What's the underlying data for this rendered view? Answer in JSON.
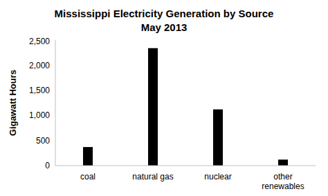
{
  "chart_data": {
    "type": "bar",
    "title": "Mississippi Electricity Generation by Source",
    "subtitle": "May 2013",
    "y_label": "Gigawatt Hours",
    "categories": [
      "coal",
      "natural gas",
      "nuclear",
      "other renewables"
    ],
    "values": [
      370,
      2340,
      1120,
      120
    ],
    "color": "#000000",
    "ylim": [
      0,
      2500
    ],
    "yticks": [
      0,
      500,
      {
        "value": 1000,
        "label": "1,000"
      },
      {
        "value": 1500,
        "label": "1,500"
      },
      {
        "value": 2000,
        "label": "2,000"
      },
      {
        "value": 2500,
        "label": "2,500"
      }
    ],
    "grid": false
  }
}
